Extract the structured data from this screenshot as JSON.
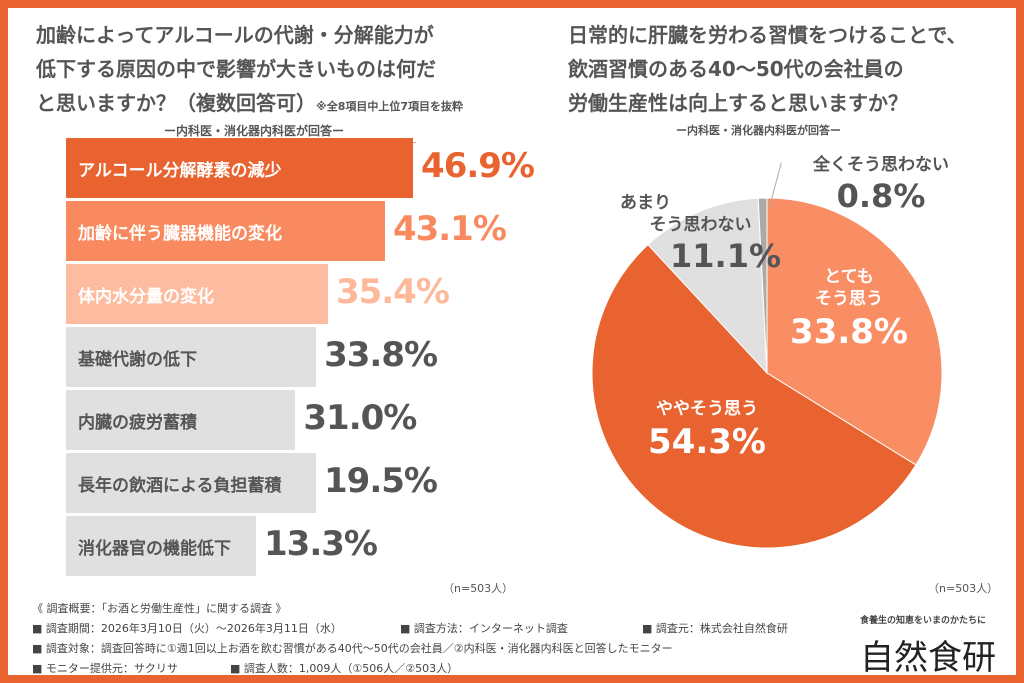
{
  "left": {
    "title_lines": [
      "加齢によってアルコールの代謝・分解能力が",
      "低下する原因の中で影響が大きいものは何だ",
      "と思いますか？（複数回答可）"
    ],
    "note": "※全8項目中上位7項目を抜粋",
    "subtitle": "ー内科医・消化器内科医が回答ー",
    "n": "（n=503人）"
  },
  "right": {
    "title_lines": [
      "日常的に肝臓を労わる習慣をつけることで、",
      "飲酒習慣のある40～50代の会社員の",
      "労働生産性は向上すると思いますか？"
    ],
    "subtitle": "ー内科医・消化器内科医が回答ー",
    "n": "（n=503人）"
  },
  "chart_data": [
    {
      "type": "bar",
      "orientation": "horizontal",
      "categories": [
        "アルコール分解酵素の減少",
        "加齢に伴う臓器機能の変化",
        "体内水分量の変化",
        "基礎代謝の低下",
        "内臓の疲労蓄積",
        "長年の飲酒による負担蓄積",
        "消化器官の機能低下"
      ],
      "values": [
        46.9,
        43.1,
        35.4,
        33.8,
        31.0,
        19.5,
        13.3
      ],
      "labels": [
        "46.9%",
        "43.1%",
        "35.4%",
        "33.8%",
        "31.0%",
        "19.5%",
        "13.3%"
      ],
      "colors": [
        "#e8632f",
        "#f98a5f",
        "#fdbc9f",
        "#e0e0e0",
        "#e0e0e0",
        "#e0e0e0",
        "#e0e0e0"
      ],
      "value_colors": [
        "#e8632f",
        "#f98a5f",
        "#fdb99a",
        "#555555",
        "#555555",
        "#555555",
        "#555555"
      ]
    },
    {
      "type": "pie",
      "slices": [
        {
          "label_lines": [
            "とても",
            "そう思う"
          ],
          "value": 33.8,
          "text": "33.8%",
          "color": "#f98e65"
        },
        {
          "label_lines": [
            "ややそう思う"
          ],
          "value": 54.3,
          "text": "54.3%",
          "color": "#e8632f"
        },
        {
          "label_lines": [
            "あまり",
            "そう思わない"
          ],
          "value": 11.1,
          "text": "11.1%",
          "color": "#e0e0e0"
        },
        {
          "label_lines": [
            "全くそう思わない"
          ],
          "value": 0.8,
          "text": "0.8%",
          "color": "#aaaaaa"
        }
      ]
    }
  ],
  "footer": {
    "lines": [
      "《 調査概要：「お酒と労働生産性」に関する調査 》",
      "■ 調査期間：2026年3月10日（火）～2026年3月11日（水）",
      "■ 調査方法：インターネット調査",
      "■ 調査元：株式会社自然食研",
      "■ 調査対象：調査回答時に①週1回以上お酒を飲む習慣がある40代～50代の会社員／②内科医・消化器内科医と回答したモニター",
      "■ モニター提供元：サクリサ",
      "■ 調査人数：1,009人（①506人／②503人）"
    ],
    "logo_tagline": "食養生の知恵をいまのかたちに",
    "logo": "自然食研"
  }
}
